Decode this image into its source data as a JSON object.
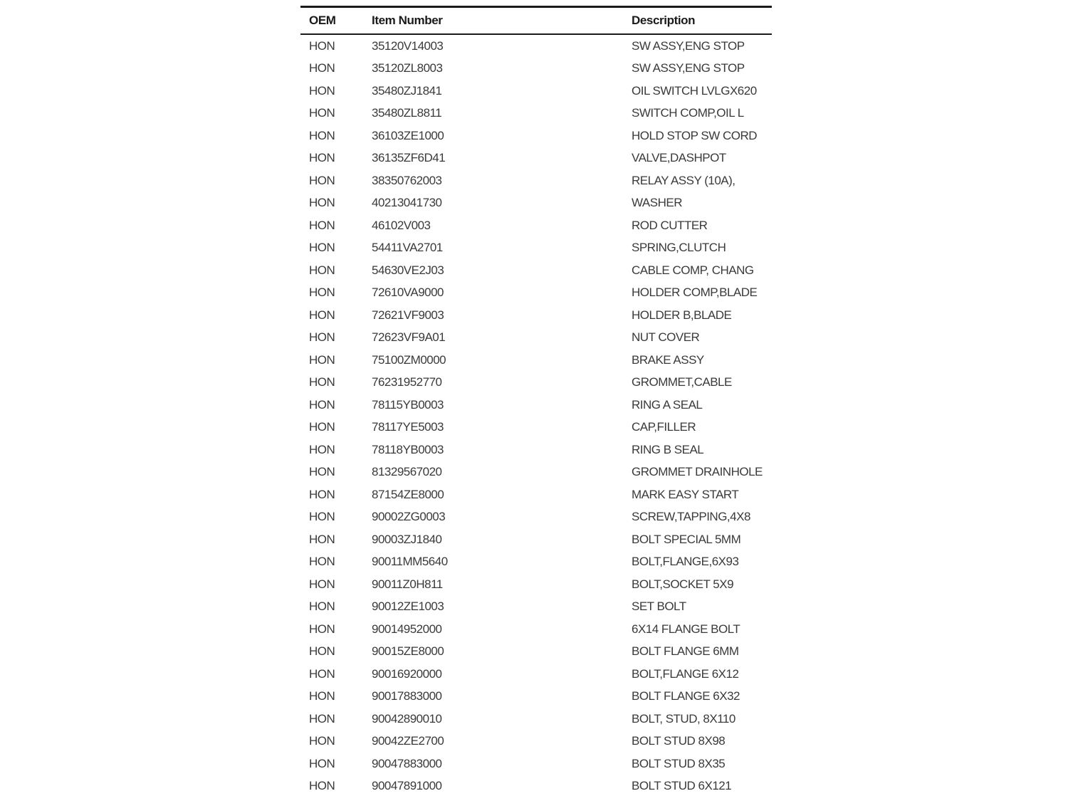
{
  "table": {
    "headers": {
      "oem": "OEM",
      "item_number": "Item Number",
      "description": "Description"
    },
    "rows": [
      {
        "oem": "HON",
        "item": "35120V14003",
        "desc": "SW ASSY,ENG STOP"
      },
      {
        "oem": "HON",
        "item": "35120ZL8003",
        "desc": "SW ASSY,ENG STOP"
      },
      {
        "oem": "HON",
        "item": "35480ZJ1841",
        "desc": "OIL SWITCH LVLGX620"
      },
      {
        "oem": "HON",
        "item": "35480ZL8811",
        "desc": "SWITCH COMP,OIL L"
      },
      {
        "oem": "HON",
        "item": "36103ZE1000",
        "desc": "HOLD STOP SW CORD"
      },
      {
        "oem": "HON",
        "item": "36135ZF6D41",
        "desc": "VALVE,DASHPOT"
      },
      {
        "oem": "HON",
        "item": "38350762003",
        "desc": "RELAY ASSY (10A),"
      },
      {
        "oem": "HON",
        "item": "40213041730",
        "desc": "WASHER"
      },
      {
        "oem": "HON",
        "item": "46102V003",
        "desc": "ROD CUTTER"
      },
      {
        "oem": "HON",
        "item": "54411VA2701",
        "desc": "SPRING,CLUTCH"
      },
      {
        "oem": "HON",
        "item": "54630VE2J03",
        "desc": "CABLE COMP, CHANG"
      },
      {
        "oem": "HON",
        "item": "72610VA9000",
        "desc": "HOLDER COMP,BLADE"
      },
      {
        "oem": "HON",
        "item": "72621VF9003",
        "desc": "HOLDER B,BLADE"
      },
      {
        "oem": "HON",
        "item": "72623VF9A01",
        "desc": "NUT COVER"
      },
      {
        "oem": "HON",
        "item": "75100ZM0000",
        "desc": "BRAKE ASSY"
      },
      {
        "oem": "HON",
        "item": "76231952770",
        "desc": "GROMMET,CABLE"
      },
      {
        "oem": "HON",
        "item": "78115YB0003",
        "desc": "RING A SEAL"
      },
      {
        "oem": "HON",
        "item": "78117YE5003",
        "desc": "CAP,FILLER"
      },
      {
        "oem": "HON",
        "item": "78118YB0003",
        "desc": "RING B SEAL"
      },
      {
        "oem": "HON",
        "item": "81329567020",
        "desc": "GROMMET DRAINHOLE"
      },
      {
        "oem": "HON",
        "item": "87154ZE8000",
        "desc": "MARK EASY START"
      },
      {
        "oem": "HON",
        "item": "90002ZG0003",
        "desc": "SCREW,TAPPING,4X8"
      },
      {
        "oem": "HON",
        "item": "90003ZJ1840",
        "desc": "BOLT SPECIAL 5MM"
      },
      {
        "oem": "HON",
        "item": "90011MM5640",
        "desc": "BOLT,FLANGE,6X93"
      },
      {
        "oem": "HON",
        "item": "90011Z0H811",
        "desc": "BOLT,SOCKET 5X9"
      },
      {
        "oem": "HON",
        "item": "90012ZE1003",
        "desc": "SET BOLT"
      },
      {
        "oem": "HON",
        "item": "90014952000",
        "desc": "6X14 FLANGE BOLT"
      },
      {
        "oem": "HON",
        "item": "90015ZE8000",
        "desc": "BOLT FLANGE 6MM"
      },
      {
        "oem": "HON",
        "item": "90016920000",
        "desc": "BOLT,FLANGE 6X12"
      },
      {
        "oem": "HON",
        "item": "90017883000",
        "desc": "BOLT FLANGE 6X32"
      },
      {
        "oem": "HON",
        "item": "90042890010",
        "desc": "BOLT, STUD, 8X110"
      },
      {
        "oem": "HON",
        "item": "90042ZE2700",
        "desc": "BOLT STUD 8X98"
      },
      {
        "oem": "HON",
        "item": "90047883000",
        "desc": "BOLT STUD 8X35"
      },
      {
        "oem": "HON",
        "item": "90047891000",
        "desc": "BOLT STUD 6X121"
      }
    ]
  }
}
